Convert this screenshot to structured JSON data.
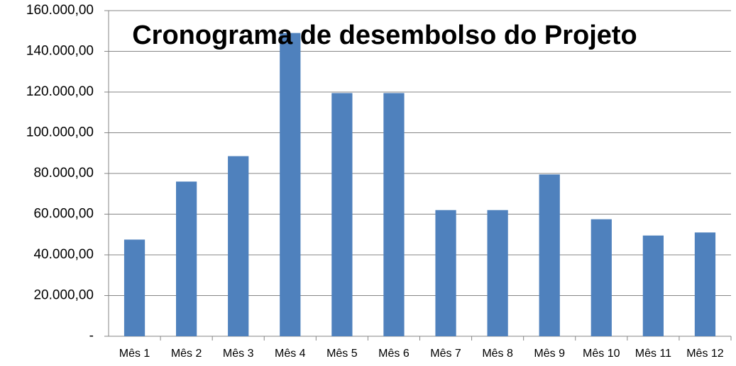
{
  "chart_data": {
    "type": "bar",
    "title": "Cronograma de desembolso do Projeto",
    "categories": [
      "Mês 1",
      "Mês 2",
      "Mês 3",
      "Mês 4",
      "Mês 5",
      "Mês 6",
      "Mês 7",
      "Mês 8",
      "Mês 9",
      "Mês 10",
      "Mês 11",
      "Mês 12"
    ],
    "values": [
      47500,
      76000,
      88500,
      149000,
      119500,
      119500,
      62000,
      62000,
      79500,
      57500,
      49500,
      51000
    ],
    "color": "#4f81bd",
    "ylim": [
      0,
      160000
    ],
    "yticks": [
      {
        "value": 0,
        "label": "-"
      },
      {
        "value": 20000,
        "label": "20.000,00"
      },
      {
        "value": 40000,
        "label": "40.000,00"
      },
      {
        "value": 60000,
        "label": "60.000,00"
      },
      {
        "value": 80000,
        "label": "80.000,00"
      },
      {
        "value": 100000,
        "label": "100.000,00"
      },
      {
        "value": 120000,
        "label": "120.000,00"
      },
      {
        "value": 140000,
        "label": "140.000,00"
      },
      {
        "value": 160000,
        "label": "160.000,00"
      }
    ],
    "grid": true
  }
}
